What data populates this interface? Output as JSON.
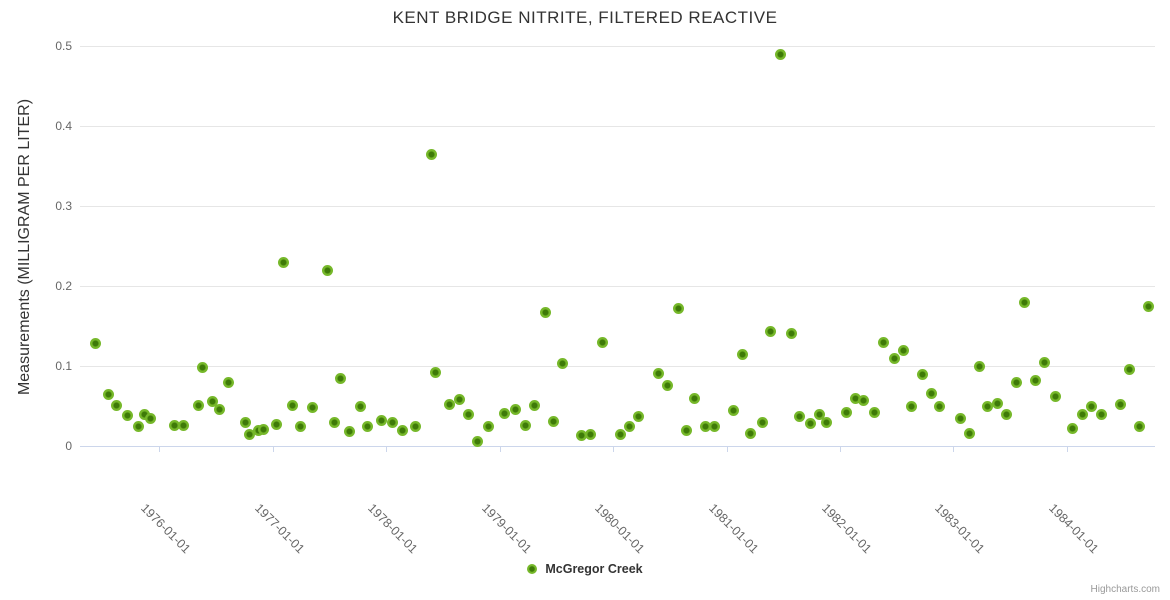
{
  "header": {
    "title": "KENT BRIDGE NITRITE, FILTERED REACTIVE"
  },
  "y_axis": {
    "title": "Measurements (MILLIGRAM PER LITER)",
    "tick_values": [
      0,
      0.1,
      0.2,
      0.3,
      0.4,
      0.5
    ],
    "tick_labels": [
      "0",
      "0.1",
      "0.2",
      "0.3",
      "0.4",
      "0.5"
    ]
  },
  "x_axis": {
    "tick_labels": [
      "1976-01-01",
      "1977-01-01",
      "1978-01-01",
      "1979-01-01",
      "1980-01-01",
      "1981-01-01",
      "1982-01-01",
      "1983-01-01",
      "1984-01-01"
    ]
  },
  "legend": {
    "series_label": "McGregor Creek"
  },
  "credit": {
    "label": "Highcharts.com"
  },
  "colors": {
    "marker_outer": "#76b82a",
    "marker_inner": "#3e7a08",
    "grid": "#e6e6e6",
    "axis_line": "#ccd6eb",
    "tick_text": "#666666",
    "title_text": "#333333",
    "credit_text": "#999999"
  },
  "chart_data": {
    "type": "scatter",
    "title": "KENT BRIDGE NITRITE, FILTERED REACTIVE",
    "xlabel": "",
    "ylabel": "Measurements (MILLIGRAM PER LITER)",
    "ylim": [
      0,
      0.5
    ],
    "x_range": [
      "1975-04-20",
      "1984-10-12"
    ],
    "grid": "horizontal",
    "legend_position": "bottom-center",
    "series": [
      {
        "name": "McGregor Creek",
        "data": [
          [
            "1975-06-10",
            0.128
          ],
          [
            "1975-07-21",
            0.065
          ],
          [
            "1975-08-14",
            0.051
          ],
          [
            "1975-09-21",
            0.038
          ],
          [
            "1975-10-25",
            0.024
          ],
          [
            "1975-11-13",
            0.04
          ],
          [
            "1975-12-04",
            0.034
          ],
          [
            "1976-02-20",
            0.026
          ],
          [
            "1976-03-20",
            0.026
          ],
          [
            "1976-05-05",
            0.051
          ],
          [
            "1976-05-19",
            0.098
          ],
          [
            "1976-06-20",
            0.056
          ],
          [
            "1976-07-13",
            0.046
          ],
          [
            "1976-08-09",
            0.079
          ],
          [
            "1976-10-03",
            0.029
          ],
          [
            "1976-10-18",
            0.014
          ],
          [
            "1976-11-14",
            0.019
          ],
          [
            "1976-12-01",
            0.021
          ],
          [
            "1977-01-13",
            0.027
          ],
          [
            "1977-02-02",
            0.23
          ],
          [
            "1977-03-05",
            0.051
          ],
          [
            "1977-03-31",
            0.025
          ],
          [
            "1977-05-07",
            0.048
          ],
          [
            "1977-06-26",
            0.22
          ],
          [
            "1977-07-19",
            0.029
          ],
          [
            "1977-08-07",
            0.085
          ],
          [
            "1977-09-05",
            0.018
          ],
          [
            "1977-10-10",
            0.049
          ],
          [
            "1977-11-01",
            0.025
          ],
          [
            "1977-12-17",
            0.032
          ],
          [
            "1978-01-20",
            0.029
          ],
          [
            "1978-02-22",
            0.019
          ],
          [
            "1978-04-05",
            0.024
          ],
          [
            "1978-05-25",
            0.365
          ],
          [
            "1978-06-09",
            0.092
          ],
          [
            "1978-07-23",
            0.052
          ],
          [
            "1978-08-26",
            0.058
          ],
          [
            "1978-09-22",
            0.04
          ],
          [
            "1978-10-22",
            0.006
          ],
          [
            "1978-11-27",
            0.024
          ],
          [
            "1979-01-18",
            0.041
          ],
          [
            "1979-02-22",
            0.046
          ],
          [
            "1979-03-25",
            0.026
          ],
          [
            "1979-04-24",
            0.051
          ],
          [
            "1979-05-27",
            0.167
          ],
          [
            "1979-06-23",
            0.031
          ],
          [
            "1979-07-22",
            0.103
          ],
          [
            "1979-09-22",
            0.013
          ],
          [
            "1979-10-21",
            0.014
          ],
          [
            "1979-11-28",
            0.129
          ],
          [
            "1980-01-25",
            0.014
          ],
          [
            "1980-02-23",
            0.024
          ],
          [
            "1980-03-22",
            0.037
          ],
          [
            "1980-05-26",
            0.091
          ],
          [
            "1980-06-23",
            0.076
          ],
          [
            "1980-07-30",
            0.172
          ],
          [
            "1980-08-25",
            0.02
          ],
          [
            "1980-09-21",
            0.06
          ],
          [
            "1980-10-26",
            0.025
          ],
          [
            "1980-11-23",
            0.025
          ],
          [
            "1981-01-23",
            0.045
          ],
          [
            "1981-02-22",
            0.115
          ],
          [
            "1981-03-20",
            0.016
          ],
          [
            "1981-04-26",
            0.03
          ],
          [
            "1981-05-23",
            0.143
          ],
          [
            "1981-06-22",
            0.49
          ],
          [
            "1981-07-29",
            0.141
          ],
          [
            "1981-08-23",
            0.037
          ],
          [
            "1981-09-27",
            0.028
          ],
          [
            "1981-10-26",
            0.04
          ],
          [
            "1981-11-20",
            0.029
          ],
          [
            "1982-01-23",
            0.042
          ],
          [
            "1982-02-21",
            0.06
          ],
          [
            "1982-03-18",
            0.057
          ],
          [
            "1982-04-22",
            0.042
          ],
          [
            "1982-05-21",
            0.13
          ],
          [
            "1982-06-27",
            0.11
          ],
          [
            "1982-07-24",
            0.12
          ],
          [
            "1982-08-20",
            0.049
          ],
          [
            "1982-09-23",
            0.089
          ],
          [
            "1982-10-24",
            0.066
          ],
          [
            "1982-11-17",
            0.049
          ],
          [
            "1983-01-23",
            0.035
          ],
          [
            "1983-02-24",
            0.016
          ],
          [
            "1983-03-28",
            0.1
          ],
          [
            "1983-04-22",
            0.05
          ],
          [
            "1983-05-24",
            0.053
          ],
          [
            "1983-06-22",
            0.039
          ],
          [
            "1983-07-24",
            0.08
          ],
          [
            "1983-08-20",
            0.18
          ],
          [
            "1983-09-24",
            0.082
          ],
          [
            "1983-10-23",
            0.105
          ],
          [
            "1983-11-27",
            0.062
          ],
          [
            "1984-01-19",
            0.022
          ],
          [
            "1984-02-22",
            0.04
          ],
          [
            "1984-03-21",
            0.05
          ],
          [
            "1984-04-23",
            0.039
          ],
          [
            "1984-06-24",
            0.052
          ],
          [
            "1984-07-21",
            0.096
          ],
          [
            "1984-08-24",
            0.025
          ],
          [
            "1984-09-20",
            0.174
          ]
        ]
      }
    ]
  }
}
